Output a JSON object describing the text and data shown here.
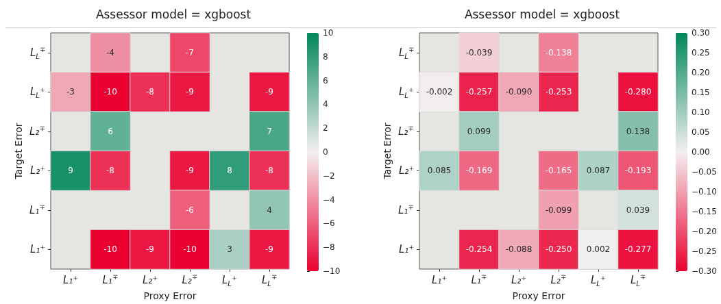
{
  "chart_data": [
    {
      "type": "heatmap",
      "title": "Assessor model = xgboost",
      "xlabel": "Proxy Error",
      "ylabel": "Target Error",
      "categories": [
        "L₁⁺",
        "L₁$^{∓}$",
        "L₂⁺",
        "L₂$^{∓}$",
        "L$_{L}$⁺",
        "L$_{L}$$^{∓}$"
      ],
      "y_categories": [
        "L$_{L}$$^{∓}$",
        "L$_{L}$⁺",
        "L₂$^{∓}$",
        "L₂⁺",
        "L₁$^{∓}$",
        "L₁⁺"
      ],
      "cells": [
        [
          null,
          -4,
          null,
          -7,
          null,
          null
        ],
        [
          -3,
          -10,
          -8,
          -9,
          null,
          -9
        ],
        [
          null,
          6,
          null,
          null,
          null,
          7
        ],
        [
          9,
          -8,
          null,
          -9,
          8,
          -8
        ],
        [
          null,
          null,
          null,
          -6,
          null,
          4
        ],
        [
          null,
          -10,
          -9,
          -10,
          3,
          -9
        ]
      ],
      "data_labels": true,
      "clim": [
        -10,
        10
      ],
      "cticks": [
        {
          "value": -10,
          "label": "−10"
        },
        {
          "value": -8,
          "label": "−8"
        },
        {
          "value": -6,
          "label": "−6"
        },
        {
          "value": -4,
          "label": "−4"
        },
        {
          "value": -2,
          "label": "−2"
        },
        0,
        2,
        4,
        6,
        8,
        10
      ]
    },
    {
      "type": "heatmap",
      "title": "Assessor model = xgboost",
      "xlabel": "Proxy Error",
      "ylabel": "Target Error",
      "categories": [
        "L₁⁺",
        "L₁$^{∓}$",
        "L₂⁺",
        "L₂$^{∓}$",
        "L$_{L}$⁺",
        "L$_{L}$$^{∓}$"
      ],
      "y_categories": [
        "L$_{L}$$^{∓}$",
        "L$_{L}$⁺",
        "L₂$^{∓}$",
        "L₂⁺",
        "L₁$^{∓}$",
        "L₁⁺"
      ],
      "cells": [
        [
          null,
          -0.039,
          null,
          -0.138,
          null,
          null
        ],
        [
          -0.002,
          -0.257,
          -0.09,
          -0.253,
          null,
          -0.28
        ],
        [
          null,
          0.099,
          null,
          null,
          null,
          0.138
        ],
        [
          0.085,
          -0.169,
          null,
          -0.165,
          0.087,
          -0.193
        ],
        [
          null,
          null,
          null,
          -0.099,
          null,
          0.039
        ],
        [
          null,
          -0.254,
          -0.088,
          -0.25,
          0.002,
          -0.277
        ]
      ],
      "cell_labels": [
        [
          null,
          "-0.039",
          null,
          "-0.138",
          null,
          null
        ],
        [
          "-0.002",
          "-0.257",
          "-0.090",
          "-0.253",
          null,
          "-0.280"
        ],
        [
          null,
          "0.099",
          null,
          null,
          null,
          "0.138"
        ],
        [
          "0.085",
          "-0.169",
          null,
          "-0.165",
          "0.087",
          "-0.193"
        ],
        [
          null,
          null,
          null,
          "-0.099",
          null,
          "0.039"
        ],
        [
          null,
          "-0.254",
          "-0.088",
          "-0.250",
          "0.002",
          "-0.277"
        ]
      ],
      "clim": [
        -0.3,
        0.3
      ],
      "cticks": [
        {
          "value": -0.3,
          "label": "−0.30"
        },
        {
          "value": -0.25,
          "label": "−0.25"
        },
        {
          "value": -0.2,
          "label": "−0.20"
        },
        {
          "value": -0.15,
          "label": "−0.15"
        },
        {
          "value": -0.1,
          "label": "−0.10"
        },
        {
          "value": -0.05,
          "label": "−0.05"
        },
        {
          "value": 0,
          "label": "0.00"
        },
        {
          "value": 0.05,
          "label": "0.05"
        },
        {
          "value": 0.1,
          "label": "0.10"
        },
        {
          "value": 0.15,
          "label": "0.15"
        },
        {
          "value": 0.2,
          "label": "0.20"
        },
        {
          "value": 0.25,
          "label": "0.25"
        },
        {
          "value": 0.3,
          "label": "0.30"
        }
      ]
    }
  ]
}
